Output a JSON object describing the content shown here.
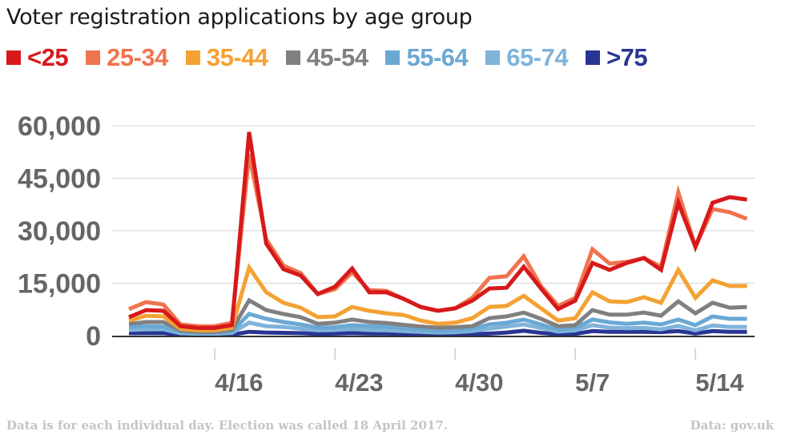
{
  "title": "Voter registration applications by age group",
  "footer": {
    "note": "Data is for each individual day. Election was called 18 April 2017.",
    "source": "Data: gov.uk"
  },
  "chart_data": {
    "type": "line",
    "title": "Voter registration applications by age group",
    "xlabel": "",
    "ylabel": "",
    "ylim": [
      0,
      60000
    ],
    "yticks": [
      0,
      15000,
      30000,
      45000,
      60000
    ],
    "ytick_labels": [
      "0",
      "15,000",
      "30,000",
      "45,000",
      "60,000"
    ],
    "xtick_labels": [
      "4/16",
      "4/23",
      "4/30",
      "5/7",
      "5/14"
    ],
    "xtick_index": [
      5,
      12,
      19,
      26,
      33
    ],
    "grid": true,
    "legend_position": "top",
    "x": [
      "4/11",
      "4/12",
      "4/13",
      "4/14",
      "4/15",
      "4/16",
      "4/17",
      "4/18",
      "4/19",
      "4/20",
      "4/21",
      "4/22",
      "4/23",
      "4/24",
      "4/25",
      "4/26",
      "4/27",
      "4/28",
      "4/29",
      "4/30",
      "5/1",
      "5/2",
      "5/3",
      "5/4",
      "5/5",
      "5/6",
      "5/7",
      "5/8",
      "5/9",
      "5/10",
      "5/11",
      "5/12",
      "5/13",
      "5/14",
      "5/15",
      "5/16",
      "5/17"
    ],
    "series": [
      {
        "name": ">75",
        "color": "#283593",
        "values": [
          700,
          700,
          700,
          300,
          200,
          200,
          300,
          1100,
          900,
          800,
          700,
          500,
          600,
          700,
          600,
          600,
          500,
          400,
          300,
          300,
          400,
          600,
          900,
          1400,
          800,
          400,
          500,
          1300,
          1100,
          1100,
          1100,
          1000,
          1300,
          600,
          1300,
          1100,
          1100
        ]
      },
      {
        "name": "65-74",
        "color": "#7fb3da",
        "values": [
          1600,
          1800,
          1800,
          700,
          500,
          500,
          800,
          3700,
          2700,
          2500,
          2000,
          1500,
          1600,
          1900,
          1600,
          1500,
          1300,
          1100,
          900,
          1000,
          1300,
          2000,
          2600,
          3200,
          2200,
          1200,
          1500,
          3000,
          2300,
          2100,
          2200,
          1800,
          2800,
          1500,
          2900,
          2500,
          2500
        ]
      },
      {
        "name": "55-64",
        "color": "#6aa8d4",
        "values": [
          2500,
          2700,
          2600,
          1100,
          800,
          800,
          1200,
          6200,
          4800,
          3900,
          3200,
          2300,
          2400,
          3000,
          2700,
          2500,
          2100,
          1700,
          1300,
          1500,
          2000,
          3200,
          3700,
          4600,
          3200,
          1700,
          2200,
          4600,
          3800,
          3400,
          3700,
          3200,
          4600,
          3000,
          5500,
          4800,
          4800
        ]
      },
      {
        "name": "45-54",
        "color": "#808080",
        "values": [
          3400,
          3900,
          3900,
          1500,
          1100,
          1100,
          1700,
          10100,
          7300,
          6200,
          5300,
          3400,
          3700,
          4600,
          3900,
          3600,
          3100,
          2600,
          2300,
          2400,
          2700,
          5000,
          5500,
          6600,
          4800,
          2700,
          3000,
          7300,
          6000,
          6000,
          6600,
          5700,
          9800,
          6400,
          9400,
          8000,
          8200
        ]
      },
      {
        "name": "35-44",
        "color": "#f4a233",
        "values": [
          4300,
          5700,
          5500,
          2000,
          1500,
          1500,
          2300,
          19500,
          12400,
          9400,
          8000,
          5300,
          5500,
          8200,
          7100,
          6400,
          5900,
          4300,
          3400,
          3700,
          5000,
          8200,
          8500,
          11400,
          7800,
          4300,
          5000,
          12400,
          9800,
          9600,
          11000,
          9400,
          18800,
          10800,
          15800,
          14200,
          14200
        ]
      },
      {
        "name": "25-34",
        "color": "#f0744e",
        "values": [
          7600,
          9600,
          8900,
          3200,
          2700,
          2700,
          3700,
          51800,
          27500,
          20000,
          17900,
          11900,
          13300,
          18100,
          13000,
          12800,
          10500,
          8200,
          7100,
          7800,
          10800,
          16500,
          17000,
          22700,
          14200,
          8500,
          10800,
          24700,
          20600,
          21100,
          22200,
          19700,
          41000,
          25400,
          36200,
          35300,
          33400
        ]
      },
      {
        "name": "<25",
        "color": "#d7191c",
        "values": [
          5300,
          7300,
          7100,
          2700,
          2200,
          2200,
          3000,
          58200,
          26300,
          19000,
          17200,
          11900,
          14000,
          19200,
          12400,
          12400,
          10500,
          8200,
          7100,
          7800,
          10000,
          13500,
          13700,
          19700,
          13500,
          7600,
          10000,
          20800,
          18800,
          20800,
          22200,
          18800,
          38000,
          25400,
          38000,
          39600,
          38900
        ]
      }
    ],
    "legend": [
      {
        "name": "<25",
        "color": "#d7191c"
      },
      {
        "name": "25-34",
        "color": "#f0744e"
      },
      {
        "name": "35-44",
        "color": "#f4a233"
      },
      {
        "name": "45-54",
        "color": "#808080"
      },
      {
        "name": "55-64",
        "color": "#6aa8d4"
      },
      {
        "name": "65-74",
        "color": "#7fb3da"
      },
      {
        "name": ">75",
        "color": "#283593"
      }
    ]
  }
}
